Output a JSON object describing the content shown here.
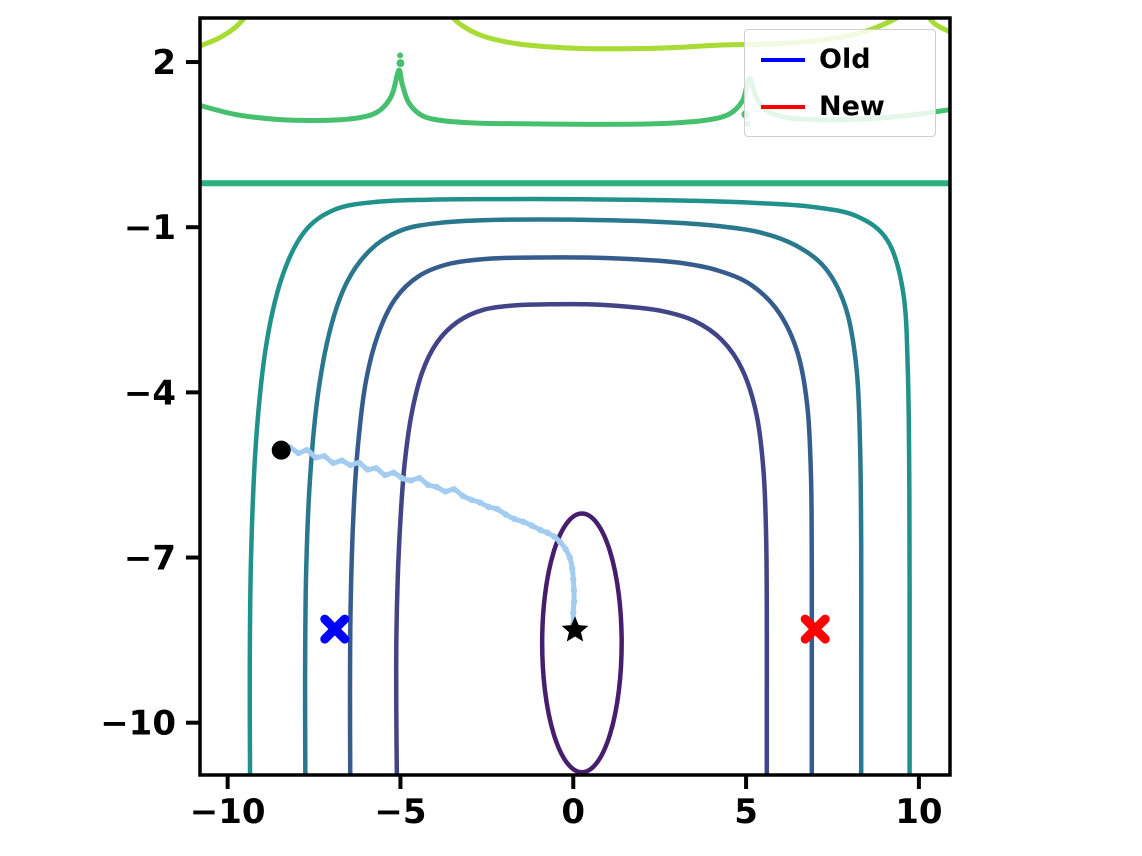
{
  "chart_data": {
    "type": "contour",
    "title": "",
    "xlabel": "",
    "ylabel": "",
    "xlim": [
      -10.8,
      10.9
    ],
    "ylim": [
      -10.95,
      2.8
    ],
    "grid": false,
    "background": "#ffffff",
    "axis_color": "#000000",
    "colormap": "viridis",
    "x_ticks": [
      {
        "value": -10,
        "label": "−10"
      },
      {
        "value": -5,
        "label": "−5"
      },
      {
        "value": 0,
        "label": "0"
      },
      {
        "value": 5,
        "label": "5"
      },
      {
        "value": 10,
        "label": "10"
      }
    ],
    "y_ticks": [
      {
        "value": 2,
        "label": "2"
      },
      {
        "value": -1,
        "label": "−1"
      },
      {
        "value": -4,
        "label": "−4"
      },
      {
        "value": -7,
        "label": "−7"
      },
      {
        "value": -10,
        "label": "−10"
      }
    ],
    "legend": {
      "position": "upper-right",
      "items": [
        {
          "label": "Old",
          "color": "#0000ff"
        },
        {
          "label": "New",
          "color": "#ff0000"
        }
      ]
    },
    "contours": [
      {
        "name": "level-lime-arc-left",
        "shape": "path",
        "color": "#a8db34",
        "width": 5,
        "points": [
          [
            -10.85,
            2.28
          ],
          [
            -10.3,
            2.42
          ],
          [
            -9.8,
            2.62
          ],
          [
            -9.45,
            2.85
          ],
          [
            -9.3,
            3.0
          ]
        ]
      },
      {
        "name": "level-lime-dome-center",
        "shape": "path",
        "color": "#a8db34",
        "width": 5,
        "points": [
          [
            -3.75,
            3.0
          ],
          [
            -3.3,
            2.7
          ],
          [
            -2.6,
            2.47
          ],
          [
            -1.6,
            2.33
          ],
          [
            -0.3,
            2.26
          ],
          [
            1.2,
            2.24
          ],
          [
            2.8,
            2.26
          ],
          [
            4.3,
            2.31
          ],
          [
            5.8,
            2.33
          ],
          [
            7.2,
            2.4
          ],
          [
            8.4,
            2.55
          ],
          [
            9.3,
            2.78
          ],
          [
            9.8,
            3.0
          ]
        ]
      },
      {
        "name": "level-lime-arc-right",
        "shape": "path",
        "color": "#a8db34",
        "width": 5,
        "points": [
          [
            10.05,
            3.0
          ],
          [
            10.45,
            2.7
          ],
          [
            10.9,
            2.55
          ]
        ]
      },
      {
        "name": "level-green-curve",
        "shape": "path",
        "color": "#46c06f",
        "width": 5,
        "points": [
          [
            -10.85,
            1.22
          ],
          [
            -9.8,
            1.05
          ],
          [
            -8.8,
            0.97
          ],
          [
            -7.8,
            0.94
          ],
          [
            -6.8,
            0.95
          ],
          [
            -6.1,
            1.0
          ],
          [
            -5.6,
            1.12
          ],
          [
            -5.25,
            1.4
          ],
          [
            -5.05,
            1.85
          ],
          [
            -4.95,
            1.6
          ],
          [
            -4.75,
            1.25
          ],
          [
            -4.35,
            1.02
          ],
          [
            -3.7,
            0.93
          ],
          [
            -2.7,
            0.89
          ],
          [
            -1.5,
            0.88
          ],
          [
            0.0,
            0.87
          ],
          [
            1.5,
            0.87
          ],
          [
            2.8,
            0.89
          ],
          [
            3.8,
            0.94
          ],
          [
            4.5,
            1.05
          ],
          [
            4.9,
            1.3
          ],
          [
            5.1,
            1.7
          ],
          [
            5.3,
            1.35
          ],
          [
            5.65,
            1.1
          ],
          [
            6.3,
            0.98
          ],
          [
            7.3,
            0.95
          ],
          [
            8.5,
            0.97
          ],
          [
            9.7,
            1.03
          ],
          [
            10.95,
            1.14
          ]
        ]
      },
      {
        "name": "level-horizontal-line",
        "shape": "path",
        "color": "#2ab07f",
        "width": 6,
        "points": [
          [
            -10.85,
            -0.2
          ],
          [
            10.95,
            -0.2
          ]
        ]
      },
      {
        "name": "level-outer-teal-u",
        "shape": "path",
        "color": "#21918c",
        "width": 4.5,
        "points": [
          [
            -9.35,
            -11.2
          ],
          [
            -9.36,
            -9.0
          ],
          [
            -9.32,
            -6.9
          ],
          [
            -9.18,
            -4.9
          ],
          [
            -8.9,
            -3.2
          ],
          [
            -8.45,
            -1.95
          ],
          [
            -7.8,
            -1.1
          ],
          [
            -6.9,
            -0.68
          ],
          [
            -5.7,
            -0.54
          ],
          [
            -4.2,
            -0.5
          ],
          [
            -2.4,
            -0.49
          ],
          [
            -0.4,
            -0.49
          ],
          [
            1.6,
            -0.5
          ],
          [
            3.5,
            -0.52
          ],
          [
            5.3,
            -0.56
          ],
          [
            6.9,
            -0.63
          ],
          [
            8.2,
            -0.8
          ],
          [
            9.1,
            -1.25
          ],
          [
            9.55,
            -2.2
          ],
          [
            9.68,
            -3.6
          ],
          [
            9.72,
            -5.4
          ],
          [
            9.73,
            -7.6
          ],
          [
            9.73,
            -11.2
          ]
        ]
      },
      {
        "name": "level-blue-teal-u",
        "shape": "path",
        "color": "#2a788e",
        "width": 4.5,
        "points": [
          [
            -7.75,
            -11.2
          ],
          [
            -7.76,
            -9.2
          ],
          [
            -7.73,
            -7.3
          ],
          [
            -7.62,
            -5.6
          ],
          [
            -7.4,
            -4.1
          ],
          [
            -7.05,
            -2.9
          ],
          [
            -6.55,
            -2.0
          ],
          [
            -5.85,
            -1.4
          ],
          [
            -4.95,
            -1.05
          ],
          [
            -3.85,
            -0.92
          ],
          [
            -2.5,
            -0.87
          ],
          [
            -0.9,
            -0.86
          ],
          [
            0.8,
            -0.87
          ],
          [
            2.4,
            -0.9
          ],
          [
            3.9,
            -0.96
          ],
          [
            5.3,
            -1.08
          ],
          [
            6.4,
            -1.32
          ],
          [
            7.3,
            -1.75
          ],
          [
            7.9,
            -2.5
          ],
          [
            8.2,
            -3.6
          ],
          [
            8.3,
            -5.0
          ],
          [
            8.33,
            -6.8
          ],
          [
            8.33,
            -9.0
          ],
          [
            8.33,
            -11.2
          ]
        ]
      },
      {
        "name": "level-steel-blue-u",
        "shape": "path",
        "color": "#365c8d",
        "width": 4.5,
        "points": [
          [
            -6.45,
            -11.2
          ],
          [
            -6.46,
            -9.4
          ],
          [
            -6.44,
            -7.8
          ],
          [
            -6.36,
            -6.2
          ],
          [
            -6.22,
            -4.9
          ],
          [
            -6.0,
            -3.8
          ],
          [
            -5.65,
            -2.95
          ],
          [
            -5.15,
            -2.3
          ],
          [
            -4.45,
            -1.88
          ],
          [
            -3.55,
            -1.66
          ],
          [
            -2.4,
            -1.57
          ],
          [
            -1.1,
            -1.55
          ],
          [
            0.3,
            -1.55
          ],
          [
            1.7,
            -1.58
          ],
          [
            3.0,
            -1.64
          ],
          [
            4.15,
            -1.78
          ],
          [
            5.15,
            -2.05
          ],
          [
            5.95,
            -2.55
          ],
          [
            6.5,
            -3.3
          ],
          [
            6.78,
            -4.3
          ],
          [
            6.88,
            -5.6
          ],
          [
            6.9,
            -7.2
          ],
          [
            6.9,
            -9.0
          ],
          [
            6.9,
            -11.2
          ]
        ]
      },
      {
        "name": "level-indigo-u",
        "shape": "path",
        "color": "#414487",
        "width": 4.5,
        "points": [
          [
            -5.1,
            -11.2
          ],
          [
            -5.12,
            -9.8
          ],
          [
            -5.12,
            -8.6
          ],
          [
            -5.08,
            -7.4
          ],
          [
            -5.0,
            -6.3
          ],
          [
            -4.88,
            -5.3
          ],
          [
            -4.68,
            -4.4
          ],
          [
            -4.38,
            -3.65
          ],
          [
            -3.95,
            -3.1
          ],
          [
            -3.35,
            -2.72
          ],
          [
            -2.6,
            -2.5
          ],
          [
            -1.7,
            -2.42
          ],
          [
            -0.7,
            -2.4
          ],
          [
            0.4,
            -2.4
          ],
          [
            1.5,
            -2.44
          ],
          [
            2.55,
            -2.52
          ],
          [
            3.5,
            -2.7
          ],
          [
            4.3,
            -3.05
          ],
          [
            4.9,
            -3.6
          ],
          [
            5.3,
            -4.4
          ],
          [
            5.5,
            -5.4
          ],
          [
            5.58,
            -6.6
          ],
          [
            5.6,
            -8.0
          ],
          [
            5.6,
            -9.6
          ],
          [
            5.6,
            -11.2
          ]
        ]
      },
      {
        "name": "level-inner-ellipse",
        "shape": "ellipse",
        "color": "#471d6e",
        "width": 4.5,
        "cx": 0.25,
        "cy": -8.55,
        "rx": 1.15,
        "ry": 2.35
      }
    ],
    "contour_dots": [
      {
        "x": -5.0,
        "y": 1.98,
        "r": 4,
        "color": "#46c06f"
      },
      {
        "x": -5.01,
        "y": 2.12,
        "r": 3,
        "color": "#46c06f"
      },
      {
        "x": 4.98,
        "y": 1.05,
        "r": 4,
        "color": "#46c06f"
      },
      {
        "x": 5.04,
        "y": 0.88,
        "r": 3,
        "color": "#46c06f"
      }
    ],
    "trajectory": {
      "name": "optimization-path",
      "color": "#a3cdf0",
      "width": 5,
      "points": [
        [
          -8.45,
          -5.05
        ],
        [
          -8.2,
          -5.0
        ],
        [
          -7.95,
          -5.1
        ],
        [
          -7.7,
          -5.05
        ],
        [
          -7.45,
          -5.18
        ],
        [
          -7.2,
          -5.16
        ],
        [
          -6.95,
          -5.28
        ],
        [
          -6.7,
          -5.24
        ],
        [
          -6.45,
          -5.32
        ],
        [
          -6.2,
          -5.28
        ],
        [
          -5.95,
          -5.4
        ],
        [
          -5.7,
          -5.38
        ],
        [
          -5.45,
          -5.5
        ],
        [
          -5.2,
          -5.46
        ],
        [
          -4.95,
          -5.56
        ],
        [
          -4.7,
          -5.6
        ],
        [
          -4.45,
          -5.56
        ],
        [
          -4.2,
          -5.68
        ],
        [
          -3.95,
          -5.72
        ],
        [
          -3.7,
          -5.8
        ],
        [
          -3.45,
          -5.76
        ],
        [
          -3.2,
          -5.88
        ],
        [
          -2.95,
          -5.95
        ],
        [
          -2.7,
          -6.0
        ],
        [
          -2.45,
          -6.08
        ],
        [
          -2.2,
          -6.12
        ],
        [
          -1.95,
          -6.22
        ],
        [
          -1.7,
          -6.3
        ],
        [
          -1.45,
          -6.35
        ],
        [
          -1.2,
          -6.42
        ],
        [
          -0.95,
          -6.5
        ],
        [
          -0.75,
          -6.55
        ],
        [
          -0.55,
          -6.62
        ],
        [
          -0.38,
          -6.72
        ],
        [
          -0.22,
          -6.85
        ],
        [
          -0.1,
          -7.0
        ],
        [
          -0.03,
          -7.2
        ],
        [
          0.0,
          -7.4
        ],
        [
          0.02,
          -7.6
        ],
        [
          0.02,
          -7.8
        ],
        [
          0.0,
          -8.0
        ],
        [
          0.0,
          -8.2
        ]
      ]
    },
    "markers": [
      {
        "name": "start-point",
        "shape": "circle",
        "x": -8.45,
        "y": -5.05,
        "color": "#000000",
        "size": 9.5
      },
      {
        "name": "target-star",
        "shape": "star",
        "x": 0.05,
        "y": -8.32,
        "color": "#000000",
        "size": 14
      },
      {
        "name": "old-marker-x",
        "shape": "x",
        "x": -6.9,
        "y": -8.3,
        "color": "#0000ff",
        "size": 10
      },
      {
        "name": "new-marker-x",
        "shape": "x",
        "x": 7.0,
        "y": -8.3,
        "color": "#ff0000",
        "size": 10
      }
    ]
  }
}
